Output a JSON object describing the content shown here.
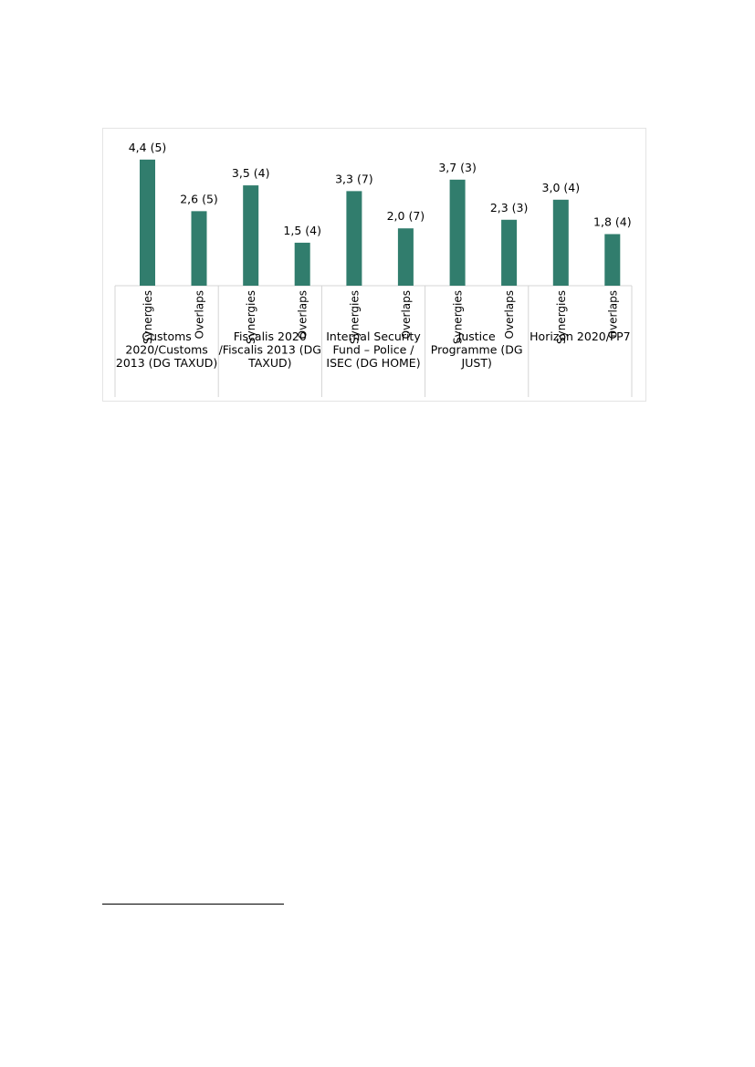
{
  "chart_data": {
    "type": "bar",
    "title": "",
    "xlabel": "",
    "ylabel": "",
    "grid": false,
    "legend": "none",
    "bar_color": "#317d6d",
    "groups": [
      {
        "label_lines": [
          "Customs",
          "2020/Customs",
          "2013 (DG TAXUD)"
        ],
        "bars": [
          {
            "category": "Synergies",
            "value": 4.4,
            "label": "4,4  (5)"
          },
          {
            "category": "Overlaps",
            "value": 2.6,
            "label": "2,6  (5)"
          }
        ]
      },
      {
        "label_lines": [
          "Fiscalis 2020",
          "/Fiscalis 2013 (DG",
          "TAXUD)"
        ],
        "bars": [
          {
            "category": "Synergies",
            "value": 3.5,
            "label": "3,5  (4)"
          },
          {
            "category": "Overlaps",
            "value": 1.5,
            "label": "1,5 (4)"
          }
        ]
      },
      {
        "label_lines": [
          "Internal Security",
          "Fund – Police /",
          "ISEC (DG HOME)"
        ],
        "bars": [
          {
            "category": "Synergies",
            "value": 3.3,
            "label": "3,3 (7)"
          },
          {
            "category": "Overlaps",
            "value": 2.0,
            "label": "2,0 (7)"
          }
        ]
      },
      {
        "label_lines": [
          "Justice",
          "Programme (DG",
          "JUST)"
        ],
        "bars": [
          {
            "category": "Synergies",
            "value": 3.7,
            "label": "3,7 (3)"
          },
          {
            "category": "Overlaps",
            "value": 2.3,
            "label": "2,3 (3)"
          }
        ]
      },
      {
        "label_lines": [
          "Horizon 2020/FP7"
        ],
        "bars": [
          {
            "category": "Synergies",
            "value": 3.0,
            "label": "3,0 (4)"
          },
          {
            "category": "Overlaps",
            "value": 1.8,
            "label": "1,8 (4)"
          }
        ]
      }
    ]
  }
}
